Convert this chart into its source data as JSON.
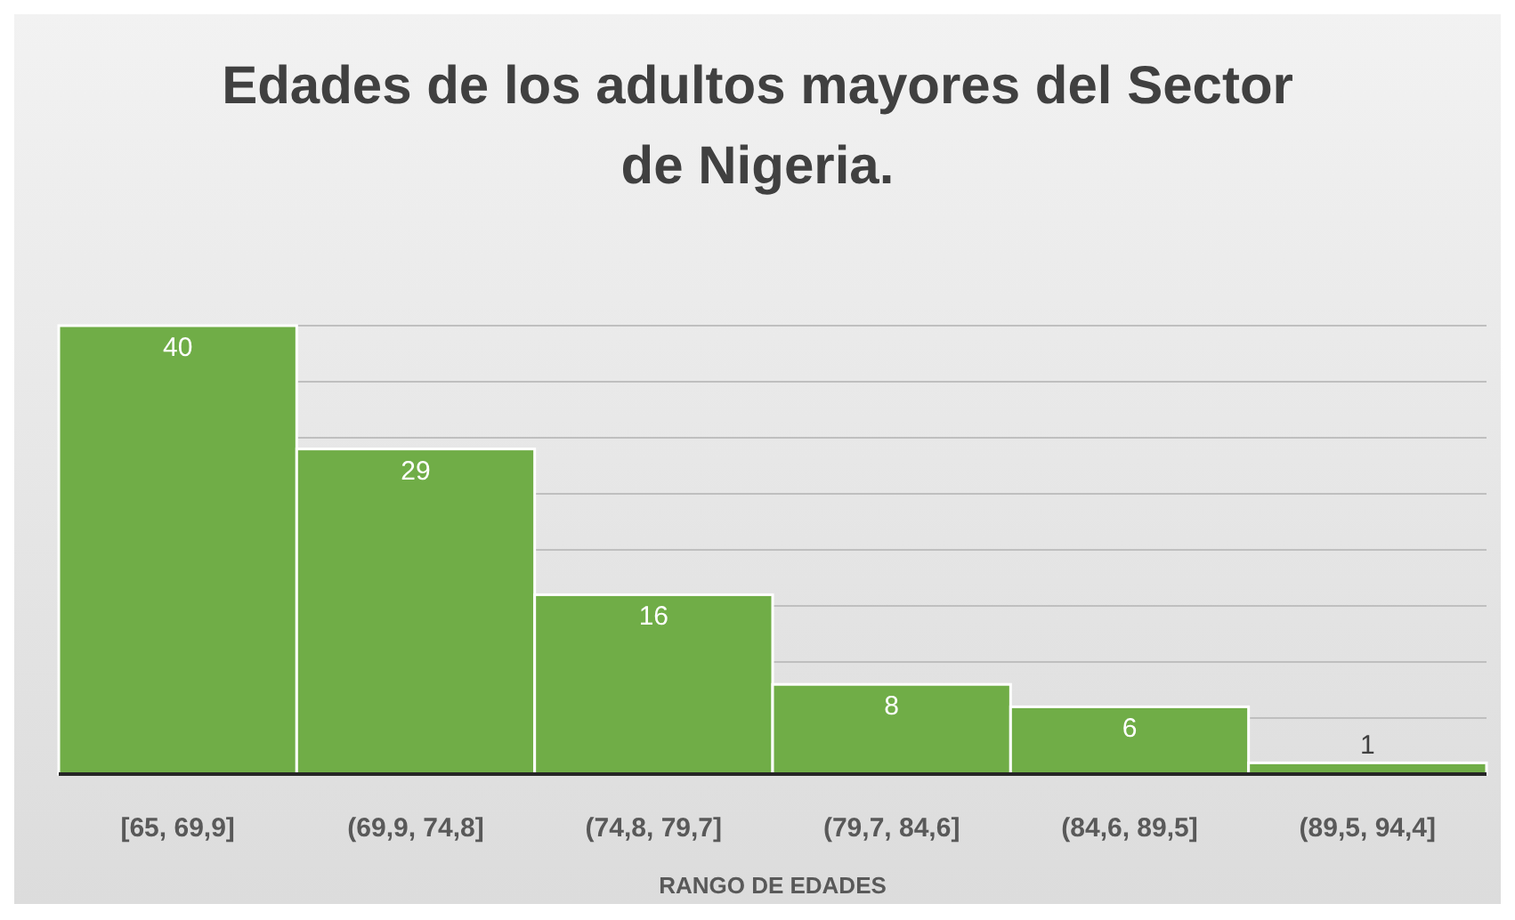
{
  "chart_data": {
    "type": "bar",
    "title": "Edades de los adultos mayores del Sector de Nigeria.",
    "xlabel": "RANGO DE EDADES",
    "categories": [
      "[65, 69,9]",
      "(69,9, 74,8]",
      "(74,8, 79,7]",
      "(79,7, 84,6]",
      "(84,6, 89,5]",
      "(89,5, 94,4]"
    ],
    "values": [
      40,
      29,
      16,
      8,
      6,
      1
    ],
    "color": "#70ad47",
    "data_labels": true,
    "grid": "y",
    "tick_labels": "x",
    "ylim": [
      0,
      40
    ],
    "yticks": [
      {
        "value": 0,
        "label": null
      },
      {
        "value": 5,
        "label": null
      },
      {
        "value": 10,
        "label": null
      },
      {
        "value": 15,
        "label": null
      },
      {
        "value": 20,
        "label": null
      },
      {
        "value": 25,
        "label": null
      },
      {
        "value": 30,
        "label": null
      },
      {
        "value": 35,
        "label": null
      },
      {
        "value": 40,
        "label": null
      }
    ]
  }
}
